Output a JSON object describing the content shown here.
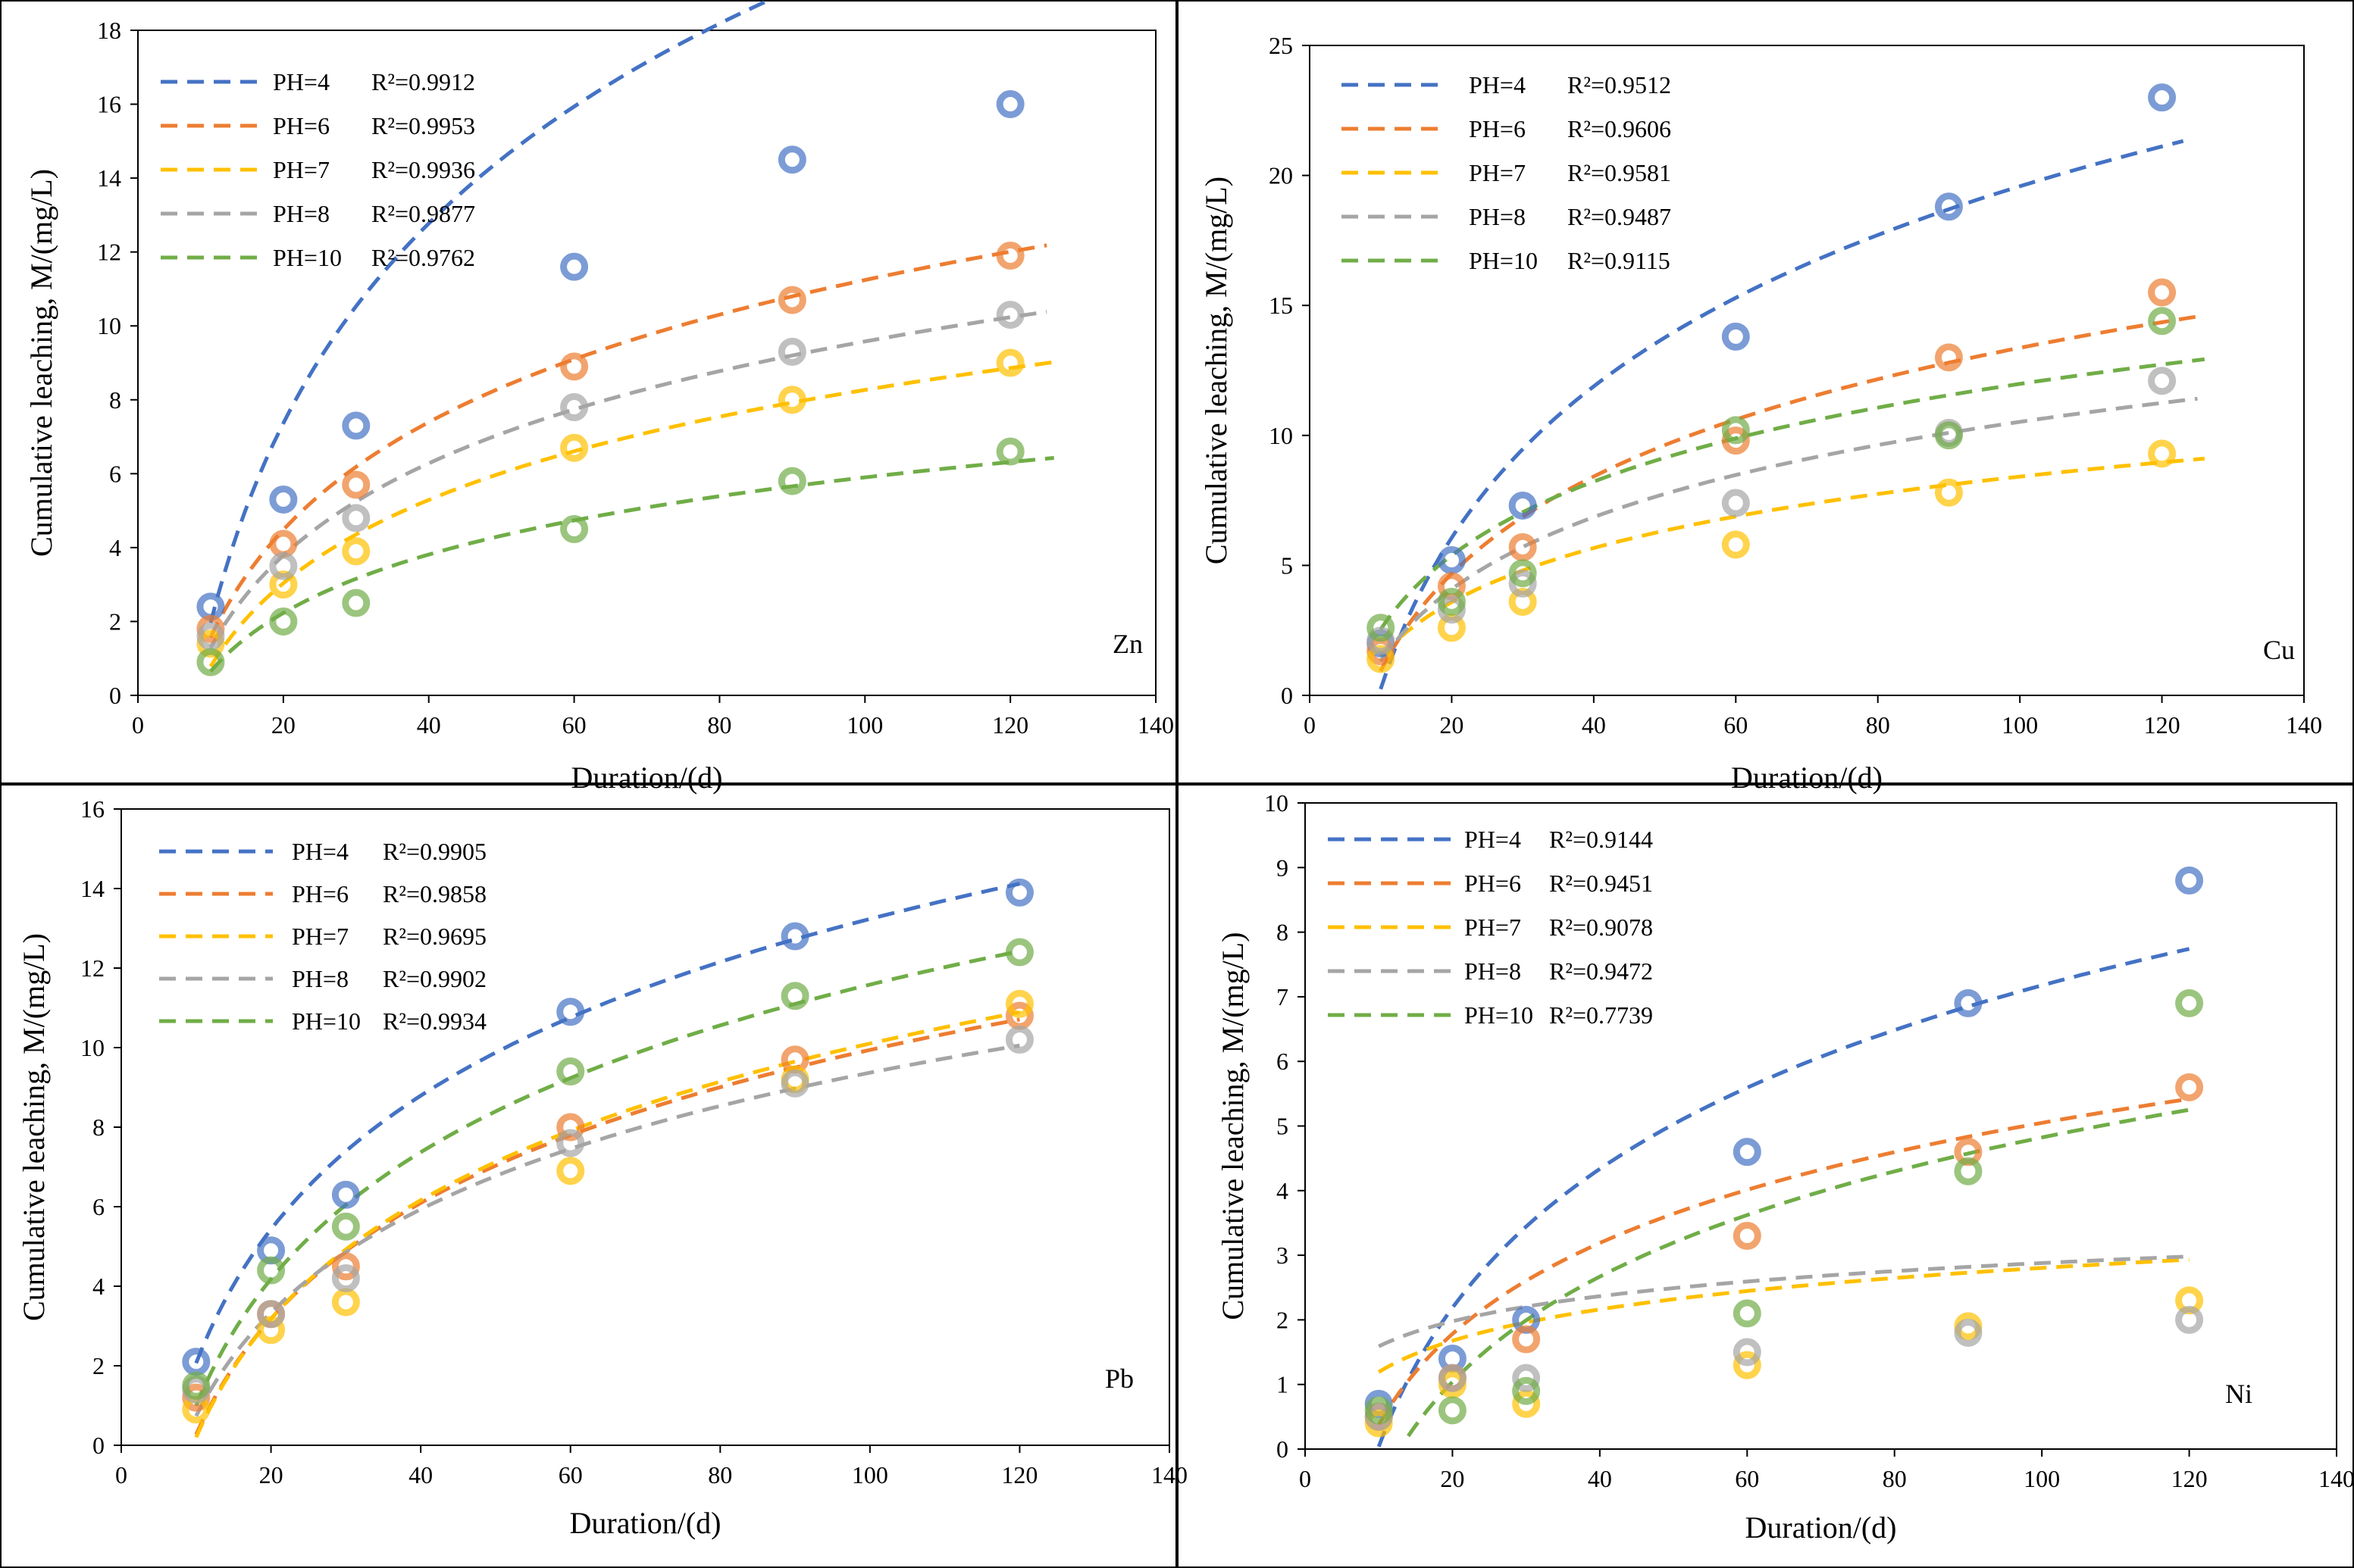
{
  "chart_data": [
    {
      "type": "scatter",
      "metal": "Zn",
      "xlabel": "Duration/(d)",
      "ylabel": "Cumulative leaching, M/(mg/L)",
      "xlim": [
        0,
        140
      ],
      "ylim": [
        0,
        18
      ],
      "xticks": [
        0,
        20,
        40,
        60,
        80,
        100,
        120,
        140
      ],
      "yticks": [
        0,
        2,
        4,
        6,
        8,
        10,
        12,
        14,
        16,
        18
      ],
      "x": [
        10,
        20,
        30,
        60,
        90,
        120
      ],
      "series": [
        {
          "name": "PH=4",
          "r2": "R²=0.9912",
          "color": "#4472C4",
          "values": [
            2.4,
            5.3,
            7.3,
            11.6,
            14.5,
            16.0
          ],
          "fit": {
            "a": 7.8,
            "b": 16.0,
            "x0": 10,
            "x1": 124
          }
        },
        {
          "name": "PH=6",
          "r2": "R²=0.9953",
          "color": "#ED7D31",
          "values": [
            1.8,
            4.1,
            5.7,
            8.9,
            10.7,
            11.9
          ],
          "fit": {
            "a": 4.2,
            "b": 8.1,
            "x0": 10,
            "x1": 125
          }
        },
        {
          "name": "PH=7",
          "r2": "R²=0.9936",
          "color": "#FFC000",
          "values": [
            1.4,
            3.0,
            3.9,
            6.7,
            8.0,
            9.0
          ],
          "fit": {
            "a": 3.25,
            "b": 6.7,
            "x0": 10,
            "x1": 126
          }
        },
        {
          "name": "PH=8",
          "r2": "R²=0.9877",
          "color": "#A5A5A5",
          "values": [
            1.6,
            3.5,
            4.8,
            7.8,
            9.3,
            10.3
          ],
          "fit": {
            "a": 3.6,
            "b": 7.0,
            "x0": 10,
            "x1": 125
          }
        },
        {
          "name": "PH=10",
          "r2": "R²=0.9762",
          "color": "#70AD47",
          "values": [
            0.9,
            2.0,
            2.5,
            4.5,
            5.8,
            6.6
          ],
          "fit": {
            "a": 2.28,
            "b": 4.6,
            "x0": 10,
            "x1": 126
          }
        }
      ]
    },
    {
      "type": "scatter",
      "metal": "Cu",
      "xlabel": "Duration/(d)",
      "ylabel": "Cumulative leaching, M/(mg/L)",
      "xlim": [
        0,
        140
      ],
      "ylim": [
        0,
        25
      ],
      "xticks": [
        0,
        20,
        40,
        60,
        80,
        100,
        120,
        140
      ],
      "yticks": [
        0,
        5,
        10,
        15,
        20,
        25
      ],
      "x": [
        10,
        20,
        30,
        60,
        90,
        120
      ],
      "series": [
        {
          "name": "PH=4",
          "r2": "R²=0.9512",
          "color": "#4472C4",
          "values": [
            2.0,
            5.2,
            7.3,
            13.8,
            18.8,
            23.0
          ],
          "fit": {
            "a": 8.4,
            "b": 19.1,
            "x0": 10,
            "x1": 123
          }
        },
        {
          "name": "PH=6",
          "r2": "R²=0.9606",
          "color": "#ED7D31",
          "values": [
            1.7,
            4.2,
            5.7,
            9.8,
            13.0,
            15.5
          ],
          "fit": {
            "a": 5.4,
            "b": 11.5,
            "x0": 10,
            "x1": 125
          }
        },
        {
          "name": "PH=7",
          "r2": "R²=0.9581",
          "color": "#FFC000",
          "values": [
            1.4,
            2.6,
            3.6,
            5.8,
            7.8,
            9.3
          ],
          "fit": {
            "a": 3.0,
            "b": 5.4,
            "x0": 10,
            "x1": 126
          }
        },
        {
          "name": "PH=8",
          "r2": "R²=0.9487",
          "color": "#A5A5A5",
          "values": [
            2.1,
            3.3,
            4.3,
            7.4,
            10.1,
            12.1
          ],
          "fit": {
            "a": 4.0,
            "b": 7.9,
            "x0": 10,
            "x1": 125
          }
        },
        {
          "name": "PH=10",
          "r2": "R²=0.9115",
          "color": "#70AD47",
          "values": [
            2.6,
            3.6,
            4.7,
            10.2,
            10.0,
            14.4
          ],
          "fit": {
            "a": 4.1,
            "b": 6.9,
            "x0": 10,
            "x1": 126
          }
        }
      ]
    },
    {
      "type": "scatter",
      "metal": "Pb",
      "xlabel": "Duration/(d)",
      "ylabel": "Cumulative leaching, M/(mg/L)",
      "xlim": [
        0,
        140
      ],
      "ylim": [
        0,
        16
      ],
      "xticks": [
        0,
        20,
        40,
        60,
        80,
        100,
        120,
        140
      ],
      "yticks": [
        0,
        2,
        4,
        6,
        8,
        10,
        12,
        14,
        16
      ],
      "x": [
        10,
        20,
        30,
        60,
        90,
        120
      ],
      "series": [
        {
          "name": "PH=4",
          "r2": "R²=0.9905",
          "color": "#4472C4",
          "values": [
            2.1,
            4.9,
            6.3,
            10.9,
            12.8,
            13.9
          ],
          "fit": {
            "a": 4.85,
            "b": 9.1,
            "x0": 10,
            "x1": 120
          }
        },
        {
          "name": "PH=6",
          "r2": "R²=0.9858",
          "color": "#ED7D31",
          "values": [
            1.2,
            3.3,
            4.5,
            8.0,
            9.7,
            10.8
          ],
          "fit": {
            "a": 4.2,
            "b": 9.4,
            "x0": 10,
            "x1": 120
          }
        },
        {
          "name": "PH=7",
          "r2": "R²=0.9695",
          "color": "#FFC000",
          "values": [
            0.9,
            2.9,
            3.6,
            6.9,
            9.2,
            11.1
          ],
          "fit": {
            "a": 4.3,
            "b": 9.7,
            "x0": 10,
            "x1": 120
          }
        },
        {
          "name": "PH=8",
          "r2": "R²=0.9902",
          "color": "#A5A5A5",
          "values": [
            1.4,
            3.3,
            4.2,
            7.6,
            9.1,
            10.2
          ],
          "fit": {
            "a": 3.75,
            "b": 7.9,
            "x0": 10,
            "x1": 120
          }
        },
        {
          "name": "PH=10",
          "r2": "R²=0.9934",
          "color": "#70AD47",
          "values": [
            1.5,
            4.4,
            5.5,
            9.4,
            11.3,
            12.4
          ],
          "fit": {
            "a": 4.6,
            "b": 9.6,
            "x0": 10,
            "x1": 120
          }
        }
      ]
    },
    {
      "type": "scatter",
      "metal": "Ni",
      "xlabel": "Duration/(d)",
      "ylabel": "Cumulative leaching, M/(mg/L)",
      "xlim": [
        0,
        140
      ],
      "ylim": [
        0,
        10
      ],
      "xticks": [
        0,
        20,
        40,
        60,
        80,
        100,
        120,
        140
      ],
      "yticks": [
        0,
        1,
        2,
        3,
        4,
        5,
        6,
        7,
        8,
        9,
        10
      ],
      "x": [
        10,
        20,
        30,
        60,
        90,
        120
      ],
      "series": [
        {
          "name": "PH=4",
          "r2": "R²=0.9144",
          "color": "#4472C4",
          "values": [
            0.7,
            1.4,
            2.0,
            4.6,
            6.9,
            8.8
          ],
          "fit": {
            "a": 3.1,
            "b": 7.1,
            "x0": 10,
            "x1": 120
          }
        },
        {
          "name": "PH=6",
          "r2": "R²=0.9451",
          "color": "#ED7D31",
          "values": [
            0.5,
            1.1,
            1.7,
            3.3,
            4.6,
            5.6
          ],
          "fit": {
            "a": 2.03,
            "b": 4.3,
            "x0": 10,
            "x1": 120
          }
        },
        {
          "name": "PH=7",
          "r2": "R²=0.9078",
          "color": "#FFC000",
          "values": [
            0.4,
            1.0,
            0.7,
            1.3,
            1.9,
            2.3
          ],
          "fit": {
            "a": 0.7,
            "b": 0.42,
            "x0": 10,
            "x1": 120
          }
        },
        {
          "name": "PH=8",
          "r2": "R²=0.9472",
          "color": "#A5A5A5",
          "values": [
            0.5,
            1.1,
            1.1,
            1.5,
            1.8,
            2.0
          ],
          "fit": {
            "a": 0.56,
            "b": -0.3,
            "x0": 10,
            "x1": 120
          }
        },
        {
          "name": "PH=10",
          "r2": "R²=0.7739",
          "color": "#70AD47",
          "values": [
            0.6,
            0.6,
            0.9,
            2.1,
            4.3,
            6.9
          ],
          "fit": {
            "a": 2.35,
            "b": 6.0,
            "x0": 14,
            "x1": 120
          }
        }
      ]
    }
  ]
}
